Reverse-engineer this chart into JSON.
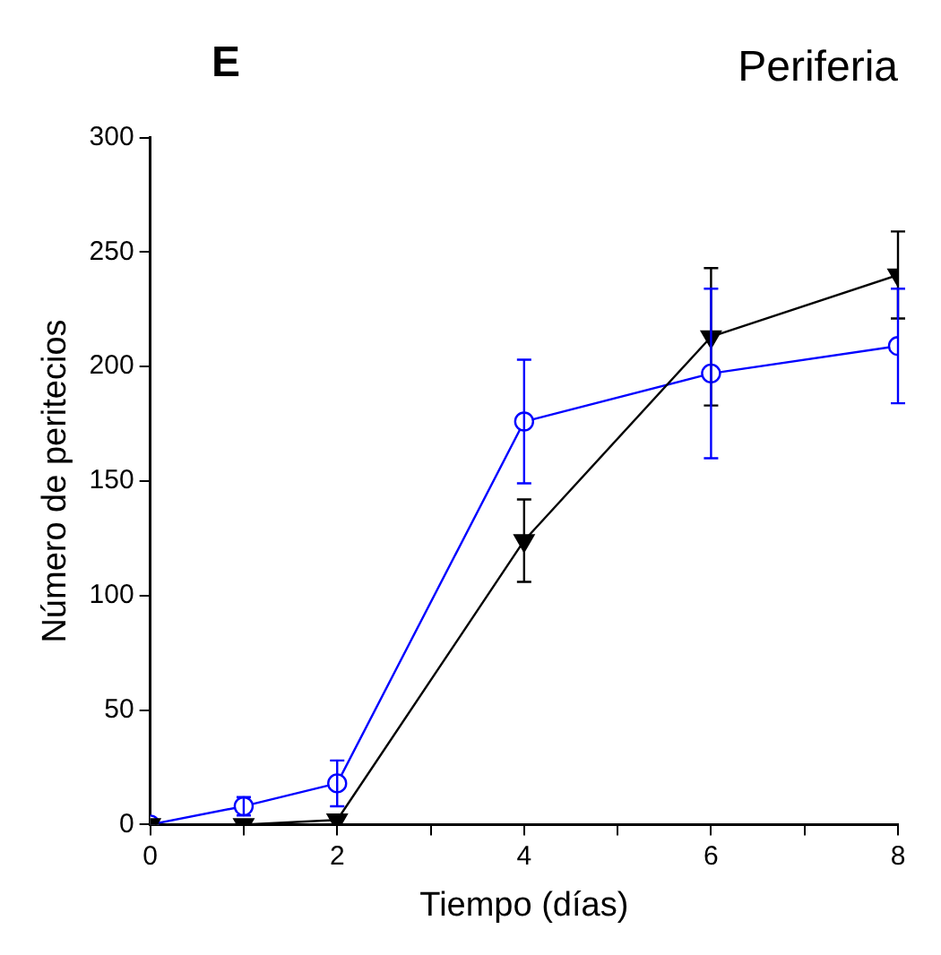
{
  "chart_data": {
    "type": "line",
    "title": "Periferia",
    "annotations": [
      "E"
    ],
    "xlabel": "Tiempo (días)",
    "ylabel": "Número de peritecios",
    "x": [
      0,
      1,
      2,
      4,
      6,
      8
    ],
    "series": [
      {
        "color": "#000000",
        "marker": "triangle",
        "values": [
          0,
          0,
          2,
          124,
          213,
          240
        ],
        "errors": [
          null,
          null,
          null,
          18,
          30,
          19
        ]
      },
      {
        "color": "#0000ff",
        "marker": "circle",
        "values": [
          0,
          8,
          18,
          176,
          197,
          209
        ],
        "errors": [
          null,
          4,
          10,
          27,
          37,
          25
        ]
      }
    ],
    "xlim": [
      0,
      8
    ],
    "xticks": [
      0,
      {
        "value": 1,
        "label": null
      },
      2,
      {
        "value": 3,
        "label": null
      },
      4,
      {
        "value": 5,
        "label": null
      },
      6,
      {
        "value": 7,
        "label": null
      },
      8
    ],
    "ylim": [
      0,
      300
    ],
    "yticks": [
      0,
      50,
      100,
      150,
      200,
      250,
      300
    ],
    "grid": false,
    "legend": false
  }
}
